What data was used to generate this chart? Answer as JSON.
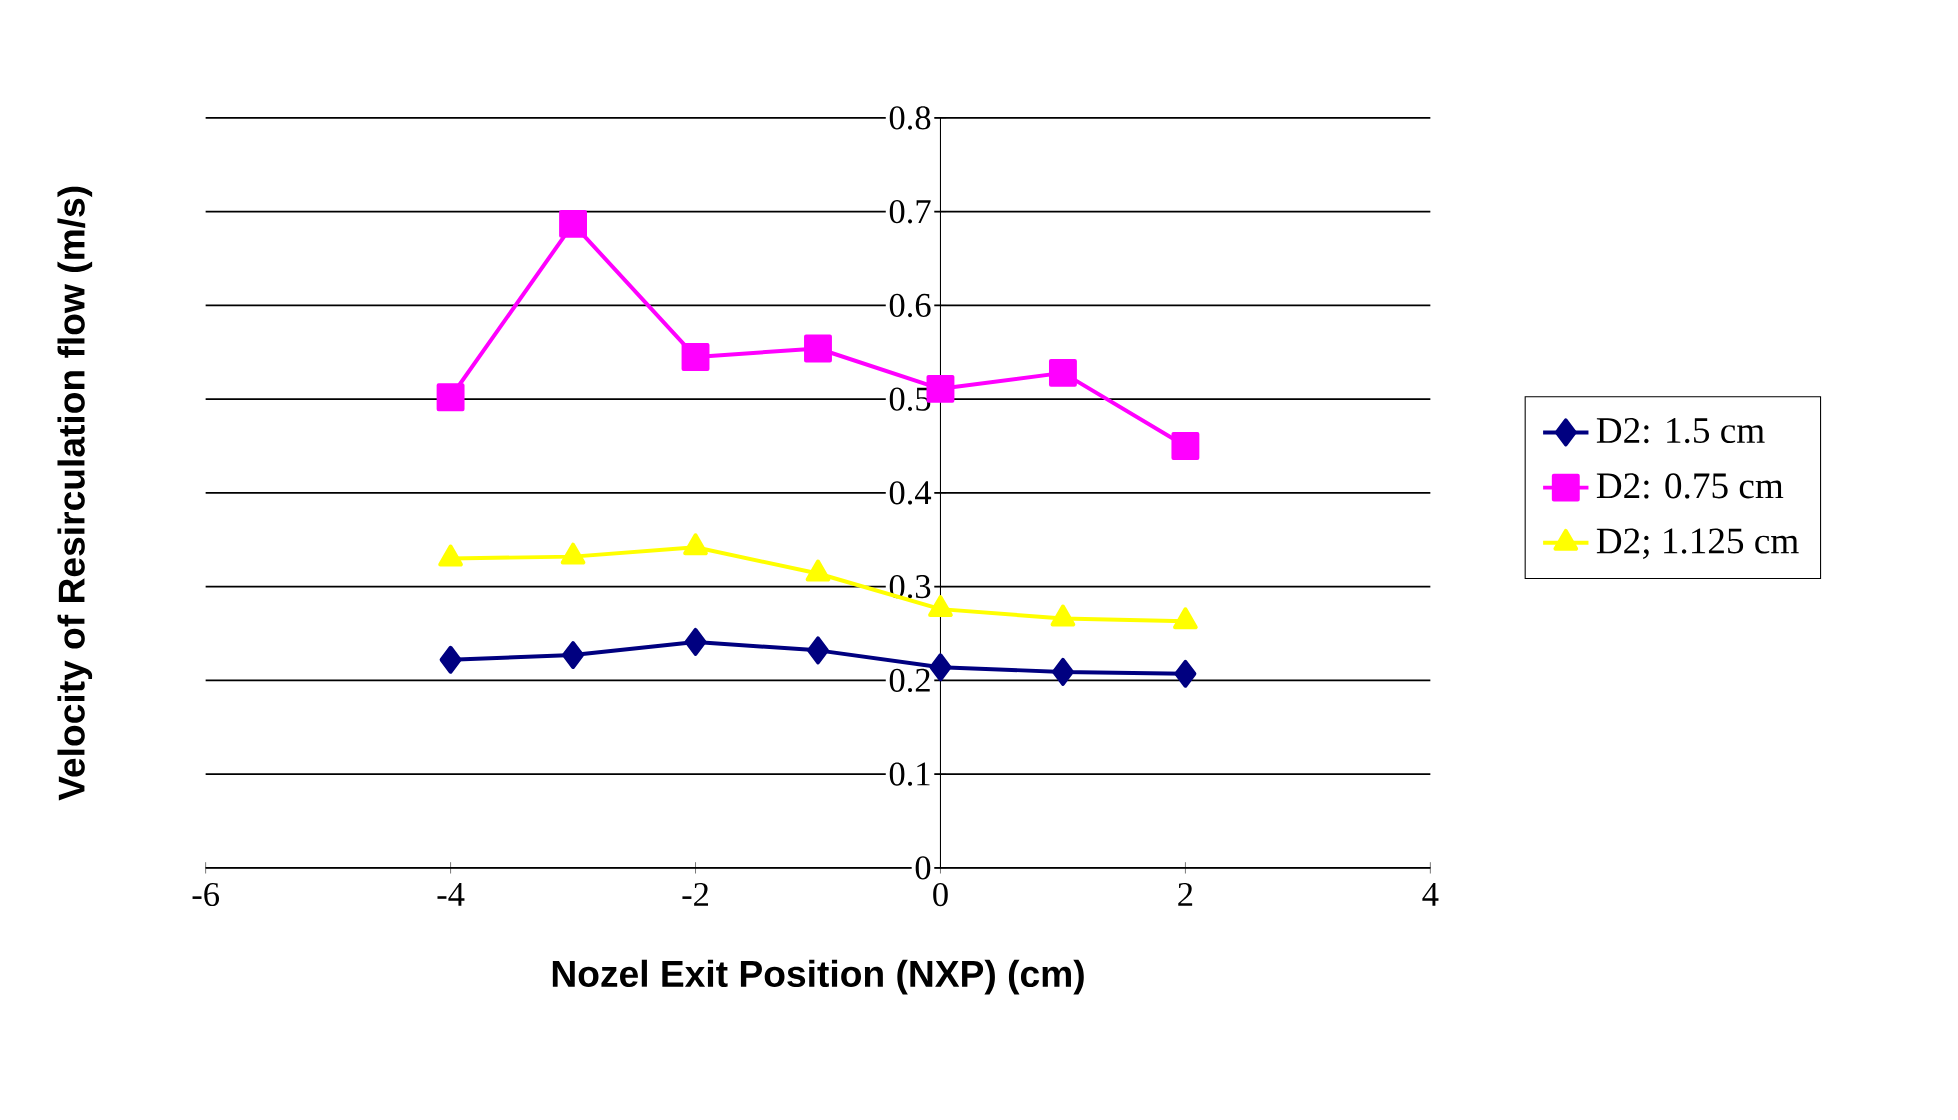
{
  "chart_data": {
    "type": "line",
    "xlabel": "Nozel Exit Position (NXP) (cm)",
    "ylabel": "Velocity of Resirculation flow (m/s)",
    "x": [
      -4,
      -3,
      -2,
      -1,
      0,
      1,
      2
    ],
    "series": [
      {
        "name": "D2: 1.5 cm",
        "color": "#000080",
        "marker": "diamond",
        "values": [
          0.222,
          0.227,
          0.241,
          0.232,
          0.214,
          0.209,
          0.207
        ]
      },
      {
        "name": "D2: 0.75 cm",
        "color": "#ff00ff",
        "marker": "square",
        "values": [
          0.502,
          0.687,
          0.545,
          0.554,
          0.511,
          0.528,
          0.45
        ]
      },
      {
        "name": "D2; 1.125 cm",
        "color": "#ffff00",
        "marker": "triangle",
        "values": [
          0.33,
          0.332,
          0.342,
          0.314,
          0.276,
          0.266,
          0.263
        ]
      }
    ],
    "xlim": [
      -6,
      4
    ],
    "xticks": [
      -6,
      -4,
      -2,
      0,
      2,
      4
    ],
    "ylim": [
      0,
      0.8
    ],
    "yticks": [
      0,
      0.1,
      0.2,
      0.3,
      0.4,
      0.5,
      0.6,
      0.7,
      0.8
    ],
    "grid": "y",
    "legend": "right",
    "line_style": "solid"
  }
}
